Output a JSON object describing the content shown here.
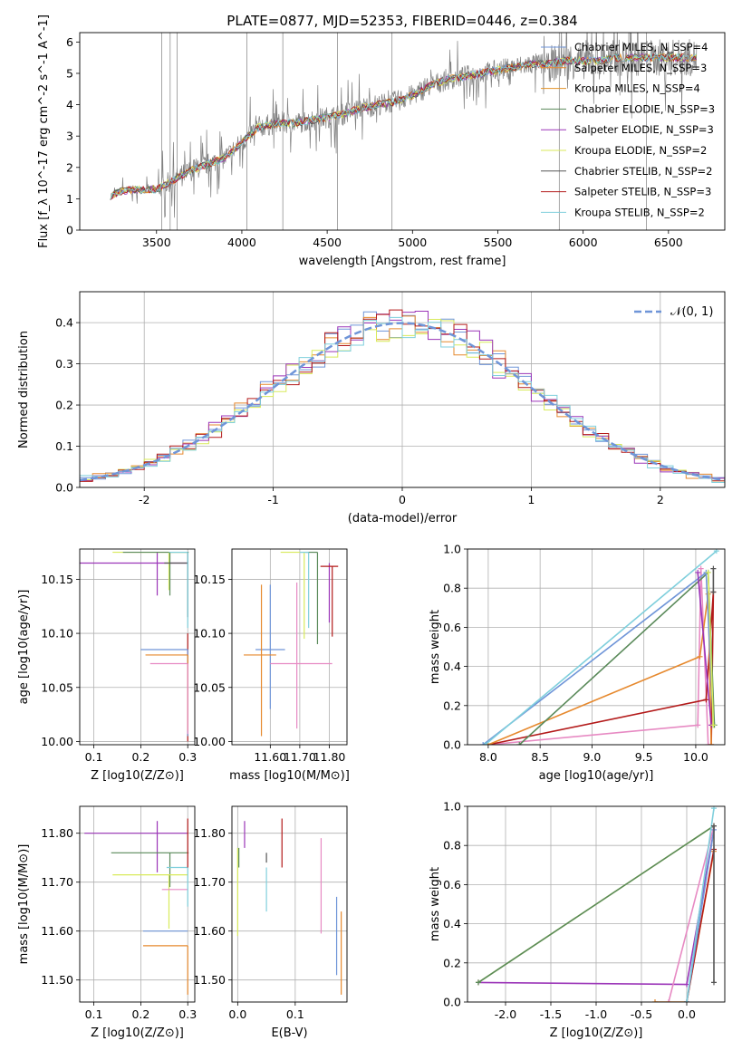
{
  "figure": {
    "title": "PLATE=0877, MJD=52353, FIBERID=0446, z=0.384"
  },
  "colors": {
    "chabrier_miles": "#6f95d8",
    "salpeter_miles": "#e6892e",
    "kroupa_miles": "#e2932a",
    "chabrier_elodie": "#5a8a5a",
    "salpeter_elodie": "#9b35b8",
    "kroupa_elodie": "#d8ea5a",
    "chabrier_stelib": "#555555",
    "salpeter_stelib": "#b31a1a",
    "kroupa_stelib": "#7fcfdc",
    "pink": "#e78ac3",
    "normal": "#6f95d8",
    "data": "#808080"
  },
  "chart_data": [
    {
      "id": "spectrum",
      "type": "line",
      "xlabel": "wavelength [Angstrom, rest frame]",
      "ylabel": "Flux [f_λ 10^-17 erg cm^-2 s^-1 A^-1]",
      "xlim": [
        3050,
        6830
      ],
      "ylim": [
        0,
        6.3
      ],
      "xticks": [
        3500,
        4000,
        4500,
        5000,
        5500,
        6000,
        6500
      ],
      "yticks": [
        0,
        1,
        2,
        3,
        4,
        5,
        6
      ],
      "grid": false,
      "legend_position": "top-right",
      "continuum": [
        [
          3230,
          1.1
        ],
        [
          3300,
          1.25
        ],
        [
          3400,
          1.3
        ],
        [
          3500,
          1.3
        ],
        [
          3600,
          1.6
        ],
        [
          3700,
          1.9
        ],
        [
          3800,
          2.1
        ],
        [
          3900,
          2.3
        ],
        [
          4000,
          2.8
        ],
        [
          4100,
          3.3
        ],
        [
          4200,
          3.4
        ],
        [
          4300,
          3.4
        ],
        [
          4400,
          3.5
        ],
        [
          4500,
          3.6
        ],
        [
          4600,
          3.7
        ],
        [
          4700,
          3.9
        ],
        [
          4800,
          4.0
        ],
        [
          4900,
          4.1
        ],
        [
          5000,
          4.3
        ],
        [
          5100,
          4.6
        ],
        [
          5200,
          4.8
        ],
        [
          5300,
          4.9
        ],
        [
          5400,
          5.0
        ],
        [
          5500,
          5.1
        ],
        [
          5600,
          5.2
        ],
        [
          5700,
          5.3
        ],
        [
          5800,
          5.3
        ],
        [
          5900,
          5.4
        ],
        [
          6000,
          5.4
        ],
        [
          6100,
          5.4
        ],
        [
          6200,
          5.5
        ],
        [
          6300,
          5.5
        ],
        [
          6400,
          5.5
        ],
        [
          6500,
          5.5
        ],
        [
          6600,
          5.5
        ],
        [
          6660,
          5.5
        ]
      ],
      "series": [
        {
          "label": "Chabrier MILES, N_SSP=4",
          "color_key": "chabrier_miles"
        },
        {
          "label": "Salpeter MILES, N_SSP=3",
          "color_key": "salpeter_miles"
        },
        {
          "label": "Kroupa MILES, N_SSP=4",
          "color_key": "kroupa_miles"
        },
        {
          "label": "Chabrier ELODIE, N_SSP=3",
          "color_key": "chabrier_elodie"
        },
        {
          "label": "Salpeter ELODIE, N_SSP=3",
          "color_key": "salpeter_elodie"
        },
        {
          "label": "Kroupa ELODIE, N_SSP=2",
          "color_key": "kroupa_elodie"
        },
        {
          "label": "Chabrier STELIB, N_SSP=2",
          "color_key": "chabrier_stelib"
        },
        {
          "label": "Salpeter STELIB, N_SSP=3",
          "color_key": "salpeter_stelib"
        },
        {
          "label": "Kroupa STELIB, N_SSP=2",
          "color_key": "kroupa_stelib"
        }
      ]
    },
    {
      "id": "residuals",
      "type": "step",
      "xlabel": "(data-model)/error",
      "ylabel": "Normed distribution",
      "xlim": [
        -2.5,
        2.5
      ],
      "ylim": [
        0,
        0.475
      ],
      "xticks": [
        -2,
        -1,
        0,
        1,
        2
      ],
      "yticks": [
        0.0,
        0.1,
        0.2,
        0.3,
        0.4
      ],
      "grid": true,
      "legend_position": "top-right",
      "normal_label": "𝒩(0, 1)",
      "series_color_keys": [
        "chabrier_miles",
        "salpeter_miles",
        "kroupa_elodie",
        "salpeter_elodie",
        "salpeter_stelib",
        "kroupa_stelib"
      ]
    },
    {
      "id": "age_vs_z",
      "type": "errorbar",
      "xlabel": "Z [log10(Z/Z⊙)]",
      "ylabel": "age  [log10(age/yr)]",
      "xlim": [
        0.07,
        0.315
      ],
      "ylim": [
        9.997,
        10.178
      ],
      "xticks": [
        0.1,
        0.2,
        0.3
      ],
      "yticks": [
        10.0,
        10.05,
        10.1,
        10.15
      ],
      "grid": true,
      "points": [
        {
          "color_key": "salpeter_elodie",
          "x": 0.235,
          "xerr": [
            0.2,
            0.065
          ],
          "y": 10.165,
          "yerr": [
            0.03,
            0.01
          ]
        },
        {
          "color_key": "kroupa_elodie",
          "x": 0.26,
          "xerr": [
            0.12,
            0.04
          ],
          "y": 10.175,
          "yerr": [
            0.035,
            0.0
          ]
        },
        {
          "color_key": "chabrier_elodie",
          "x": 0.262,
          "xerr": [
            0.1,
            0.04
          ],
          "y": 10.175,
          "yerr": [
            0.04,
            0.0
          ]
        },
        {
          "color_key": "chabrier_stelib",
          "x": 0.3,
          "xerr": [
            0.05,
            0.0
          ],
          "y": 10.165,
          "yerr": [
            0.05,
            0.01
          ]
        },
        {
          "color_key": "salpeter_stelib",
          "x": 0.3,
          "xerr": [
            0.0,
            0.0
          ],
          "y": 10.1,
          "yerr": [
            0.1,
            0.0
          ]
        },
        {
          "color_key": "chabrier_miles",
          "x": 0.3,
          "xerr": [
            0.1,
            0.0
          ],
          "y": 10.085,
          "yerr": [
            0.08,
            0.0
          ]
        },
        {
          "color_key": "salpeter_miles",
          "x": 0.3,
          "xerr": [
            0.09,
            0.0
          ],
          "y": 10.08,
          "yerr": [
            0.07,
            0.0
          ]
        },
        {
          "color_key": "pink",
          "x": 0.3,
          "xerr": [
            0.08,
            0.0
          ],
          "y": 10.072,
          "yerr": [
            0.065,
            0.0
          ]
        },
        {
          "color_key": "kroupa_stelib",
          "x": 0.3,
          "xerr": [
            0.04,
            0.0
          ],
          "y": 10.175,
          "yerr": [
            0.07,
            0.0
          ]
        }
      ]
    },
    {
      "id": "age_vs_mass",
      "type": "errorbar",
      "xlabel": "mass [log10(M/M⊙)]",
      "ylabel": "",
      "xlim": [
        11.47,
        11.86
      ],
      "ylim": [
        9.997,
        10.178
      ],
      "xticks": [
        11.6,
        11.7,
        11.8
      ],
      "yticks": [
        10.0,
        10.05,
        10.1,
        10.15
      ],
      "grid": true,
      "points": [
        {
          "color_key": "chabrier_miles",
          "x": 11.6,
          "xerr": [
            0.05,
            0.05
          ],
          "y": 10.085,
          "yerr": [
            0.055,
            0.06
          ]
        },
        {
          "color_key": "salpeter_miles",
          "x": 11.57,
          "xerr": [
            0.06,
            0.05
          ],
          "y": 10.08,
          "yerr": [
            0.075,
            0.065
          ]
        },
        {
          "color_key": "pink",
          "x": 11.69,
          "xerr": [
            0.09,
            0.12
          ],
          "y": 10.072,
          "yerr": [
            0.06,
            0.075
          ]
        },
        {
          "color_key": "kroupa_elodie",
          "x": 11.715,
          "xerr": [
            0.08,
            0.0
          ],
          "y": 10.175,
          "yerr": [
            0.08,
            0.0
          ]
        },
        {
          "color_key": "chabrier_elodie",
          "x": 11.76,
          "xerr": [
            0.04,
            0.0
          ],
          "y": 10.175,
          "yerr": [
            0.085,
            0.0
          ]
        },
        {
          "color_key": "kroupa_stelib",
          "x": 11.73,
          "xerr": [
            0.03,
            0.0
          ],
          "y": 10.175,
          "yerr": [
            0.07,
            0.0
          ]
        },
        {
          "color_key": "salpeter_elodie",
          "x": 11.8,
          "xerr": [
            0.0,
            0.0
          ],
          "y": 10.165,
          "yerr": [
            0.055,
            0.0
          ]
        },
        {
          "color_key": "salpeter_stelib",
          "x": 11.81,
          "xerr": [
            0.04,
            0.02
          ],
          "y": 10.162,
          "yerr": [
            0.065,
            0.0
          ]
        },
        {
          "color_key": "chabrier_stelib",
          "x": 11.76,
          "xerr": [
            0.0,
            0.0
          ],
          "y": 10.165,
          "yerr": [
            0.0,
            0.0
          ]
        }
      ]
    },
    {
      "id": "mass_weight_vs_age",
      "type": "line",
      "xlabel": "age  [log10(age/yr)]",
      "ylabel": "mass weight",
      "xlim": [
        7.8,
        10.28
      ],
      "ylim": [
        0,
        1.0
      ],
      "xticks": [
        8.0,
        8.5,
        9.0,
        9.5,
        10.0
      ],
      "yticks": [
        0.0,
        0.2,
        0.4,
        0.6,
        0.8,
        1.0
      ],
      "grid": true,
      "series": [
        {
          "color_key": "pink",
          "points": [
            [
              8.0,
              0.0
            ],
            [
              10.02,
              0.1
            ],
            [
              10.05,
              0.9
            ],
            [
              10.12,
              0.0
            ]
          ]
        },
        {
          "color_key": "salpeter_stelib",
          "points": [
            [
              8.0,
              0.0
            ],
            [
              10.1,
              0.23
            ],
            [
              10.17,
              0.78
            ],
            [
              10.15,
              0.0
            ]
          ]
        },
        {
          "color_key": "salpeter_miles",
          "points": [
            [
              8.0,
              0.0
            ],
            [
              10.04,
              0.45
            ],
            [
              10.12,
              0.77
            ],
            [
              10.15,
              0.0
            ]
          ]
        },
        {
          "color_key": "chabrier_elodie",
          "points": [
            [
              8.3,
              0.0
            ],
            [
              10.12,
              0.88
            ],
            [
              10.18,
              0.1
            ]
          ]
        },
        {
          "color_key": "chabrier_miles",
          "points": [
            [
              7.95,
              0.0
            ],
            [
              10.1,
              0.88
            ],
            [
              10.17,
              0.1
            ]
          ]
        },
        {
          "color_key": "salpeter_elodie",
          "points": [
            [
              10.02,
              0.88
            ],
            [
              10.15,
              0.1
            ]
          ]
        },
        {
          "color_key": "kroupa_elodie",
          "points": [
            [
              10.12,
              0.88
            ],
            [
              10.17,
              0.1
            ]
          ]
        },
        {
          "color_key": "kroupa_stelib",
          "points": [
            [
              7.97,
              0.0
            ],
            [
              10.2,
              0.99
            ]
          ]
        },
        {
          "color_key": "chabrier_stelib",
          "points": [
            [
              10.17,
              0.9
            ],
            [
              10.17,
              0.78
            ]
          ]
        }
      ]
    },
    {
      "id": "mass_vs_z",
      "type": "errorbar",
      "xlabel": "Z [log10(Z/Z⊙)]",
      "ylabel": "mass [log10(M/M⊙)]",
      "xlim": [
        0.07,
        0.315
      ],
      "ylim": [
        11.455,
        11.855
      ],
      "xticks": [
        0.1,
        0.2,
        0.3
      ],
      "yticks": [
        11.5,
        11.6,
        11.7,
        11.8
      ],
      "grid": true,
      "points": [
        {
          "color_key": "salpeter_elodie",
          "x": 0.235,
          "xerr": [
            0.155,
            0.065
          ],
          "y": 11.8,
          "yerr": [
            0.08,
            0.025
          ]
        },
        {
          "color_key": "chabrier_elodie",
          "x": 0.262,
          "xerr": [
            0.125,
            0.04
          ],
          "y": 11.76,
          "yerr": [
            0.07,
            0.0
          ]
        },
        {
          "color_key": "kroupa_elodie",
          "x": 0.26,
          "xerr": [
            0.12,
            0.04
          ],
          "y": 11.715,
          "yerr": [
            0.11,
            0.0
          ]
        },
        {
          "color_key": "chabrier_miles",
          "x": 0.3,
          "xerr": [
            0.095,
            0.0
          ],
          "y": 11.6,
          "yerr": [
            0.0,
            0.0
          ]
        },
        {
          "color_key": "salpeter_miles",
          "x": 0.3,
          "xerr": [
            0.095,
            0.0
          ],
          "y": 11.57,
          "yerr": [
            0.1,
            0.0
          ]
        },
        {
          "color_key": "pink",
          "x": 0.275,
          "xerr": [
            0.03,
            0.025
          ],
          "y": 11.685,
          "yerr": [
            0.0,
            0.0
          ]
        },
        {
          "color_key": "kroupa_stelib",
          "x": 0.3,
          "xerr": [
            0.045,
            0.0
          ],
          "y": 11.73,
          "yerr": [
            0.08,
            0.0
          ]
        },
        {
          "color_key": "salpeter_stelib",
          "x": 0.3,
          "xerr": [
            0.0,
            0.0
          ],
          "y": 11.8,
          "yerr": [
            0.07,
            0.03
          ]
        }
      ]
    },
    {
      "id": "mass_vs_ebv",
      "type": "errorbar",
      "xlabel": "E(B-V)",
      "ylabel": "",
      "xlim": [
        -0.01,
        0.19
      ],
      "ylim": [
        11.455,
        11.855
      ],
      "xticks": [
        0.0,
        0.1
      ],
      "yticks": [
        11.5,
        11.6,
        11.7,
        11.8
      ],
      "grid": true,
      "points": [
        {
          "color_key": "kroupa_elodie",
          "x": 0.0,
          "y": 11.7,
          "yerr": [
            0.11,
            0.07
          ]
        },
        {
          "color_key": "chabrier_elodie",
          "x": 0.002,
          "y": 11.73,
          "yerr": [
            0.0,
            0.04
          ]
        },
        {
          "color_key": "salpeter_elodie",
          "x": 0.012,
          "y": 11.77,
          "yerr": [
            0.0,
            0.055
          ]
        },
        {
          "color_key": "chabrier_stelib",
          "x": 0.05,
          "y": 11.74,
          "yerr": [
            0.0,
            0.02
          ]
        },
        {
          "color_key": "kroupa_stelib",
          "x": 0.05,
          "y": 11.69,
          "yerr": [
            0.05,
            0.04
          ]
        },
        {
          "color_key": "salpeter_stelib",
          "x": 0.077,
          "y": 11.78,
          "yerr": [
            0.05,
            0.05
          ]
        },
        {
          "color_key": "pink",
          "x": 0.145,
          "y": 11.69,
          "yerr": [
            0.095,
            0.1
          ]
        },
        {
          "color_key": "chabrier_miles",
          "x": 0.172,
          "y": 11.6,
          "yerr": [
            0.09,
            0.07
          ]
        },
        {
          "color_key": "salpeter_miles",
          "x": 0.18,
          "y": 11.56,
          "yerr": [
            0.09,
            0.08
          ]
        }
      ]
    },
    {
      "id": "mass_weight_vs_z",
      "type": "line",
      "xlabel": "Z [log10(Z/Z⊙)]",
      "ylabel": "mass weight",
      "xlim": [
        -2.42,
        0.42
      ],
      "ylim": [
        0,
        1.0
      ],
      "xticks": [
        -2.0,
        -1.5,
        -1.0,
        -0.5,
        0.0
      ],
      "yticks": [
        0.0,
        0.2,
        0.4,
        0.6,
        0.8,
        1.0
      ],
      "grid": true,
      "series": [
        {
          "color_key": "salpeter_elodie",
          "points": [
            [
              -2.3,
              0.1
            ],
            [
              0.0,
              0.09
            ],
            [
              0.3,
              0.88
            ]
          ]
        },
        {
          "color_key": "kroupa_elodie",
          "points": [
            [
              -2.3,
              0.1
            ],
            [
              0.3,
              0.9
            ]
          ]
        },
        {
          "color_key": "chabrier_elodie",
          "points": [
            [
              -2.3,
              0.1
            ],
            [
              0.3,
              0.9
            ]
          ]
        },
        {
          "color_key": "pink",
          "points": [
            [
              -0.2,
              0.0
            ],
            [
              0.3,
              0.9
            ]
          ]
        },
        {
          "color_key": "salpeter_miles",
          "points": [
            [
              -0.35,
              0.0
            ],
            [
              0.0,
              0.0
            ],
            [
              0.3,
              0.77
            ]
          ]
        },
        {
          "color_key": "salpeter_stelib",
          "points": [
            [
              0.0,
              0.0
            ],
            [
              0.3,
              0.78
            ]
          ]
        },
        {
          "color_key": "chabrier_miles",
          "points": [
            [
              0.0,
              0.0
            ],
            [
              0.3,
              0.88
            ]
          ]
        },
        {
          "color_key": "kroupa_stelib",
          "points": [
            [
              0.0,
              0.0
            ],
            [
              0.3,
              0.99
            ]
          ]
        },
        {
          "color_key": "chabrier_stelib",
          "points": [
            [
              0.3,
              0.9
            ],
            [
              0.3,
              0.1
            ]
          ]
        }
      ]
    }
  ]
}
